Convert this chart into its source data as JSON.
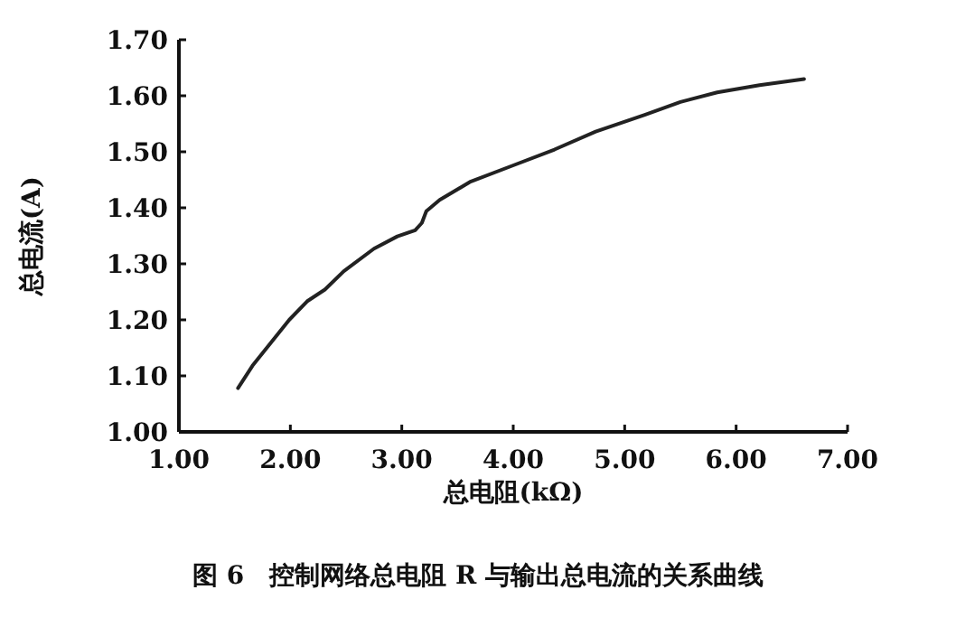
{
  "chart_data": {
    "type": "line",
    "title": "图 6　控制网络总电阻 R 与输出总电流的关系曲线",
    "xlabel": "总电阻(kΩ)",
    "ylabel": "总电流(A)",
    "xlim": [
      1,
      7
    ],
    "ylim": [
      1,
      1.7
    ],
    "xticks": [
      {
        "value": 1,
        "label": "1.00"
      },
      {
        "value": 2,
        "label": "2.00"
      },
      {
        "value": 3,
        "label": "3.00"
      },
      {
        "value": 4,
        "label": "4.00"
      },
      {
        "value": 5,
        "label": "5.00"
      },
      {
        "value": 6,
        "label": "6.00"
      },
      {
        "value": 7,
        "label": "7.00"
      }
    ],
    "yticks": [
      {
        "value": 1,
        "label": "1.00"
      },
      {
        "value": 1.1,
        "label": "1.10"
      },
      {
        "value": 1.2,
        "label": "1.20"
      },
      {
        "value": 1.3,
        "label": "1.30"
      },
      {
        "value": 1.4,
        "label": "1.40"
      },
      {
        "value": 1.5,
        "label": "1.50"
      },
      {
        "value": 1.6,
        "label": "1.60"
      },
      {
        "value": 1.7,
        "label": "1.70"
      }
    ],
    "grid": false,
    "marker": "none",
    "line_style": "solid",
    "x": [
      1.53,
      1.66,
      1.99,
      2.15,
      2.31,
      2.48,
      2.75,
      2.96,
      3.12,
      3.18,
      3.22,
      3.34,
      3.61,
      3.99,
      4.37,
      4.74,
      5.18,
      5.5,
      5.83,
      6.21,
      6.61
    ],
    "series": [
      {
        "color": "#222222",
        "values": [
          1.078,
          1.118,
          1.2,
          1.233,
          1.254,
          1.287,
          1.327,
          1.349,
          1.36,
          1.373,
          1.394,
          1.414,
          1.446,
          1.475,
          1.504,
          1.536,
          1.566,
          1.589,
          1.606,
          1.619,
          1.63
        ]
      }
    ]
  }
}
